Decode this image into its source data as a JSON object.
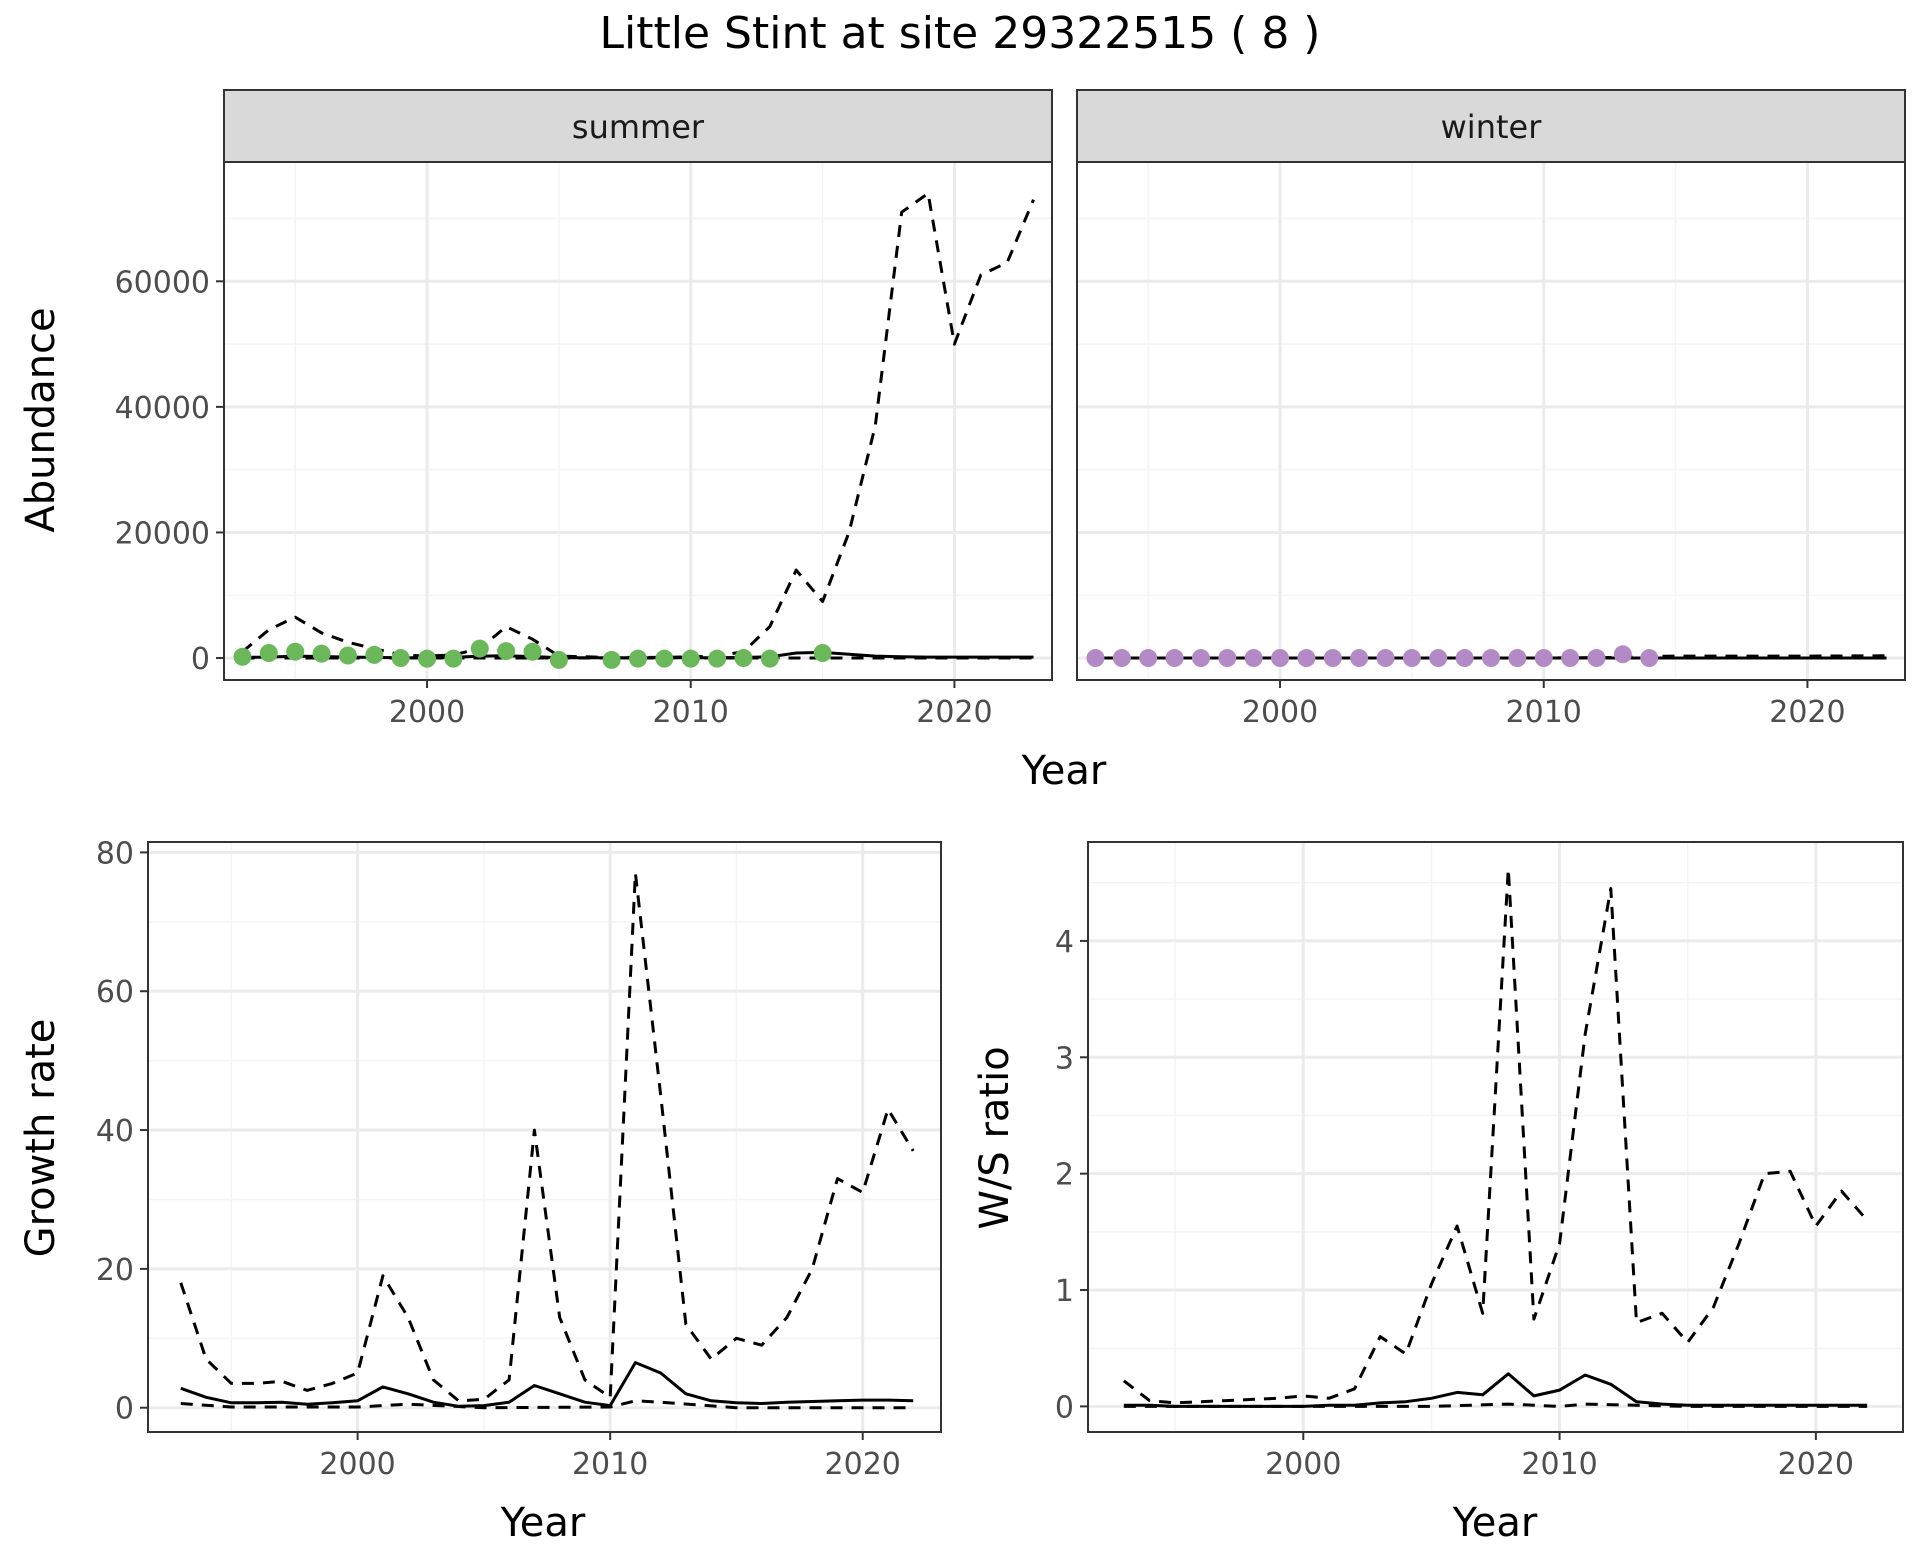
{
  "figure": {
    "title": "Little Stint at site 29322515 ( 8 )"
  },
  "colors": {
    "summer_points": "#6ab85a",
    "winter_points": "#b48ac6",
    "line": "#000000",
    "strip": "#d9d9d9",
    "grid_major": "#ebebeb",
    "grid_minor": "#f4f4f4"
  },
  "chart_data": [
    {
      "id": "summer",
      "type": "line",
      "strip": "summer",
      "ylabel": "Abundance",
      "xlabel": "",
      "xlim": [
        1992.3,
        2023.7
      ],
      "ylim": [
        -3500,
        79000
      ],
      "xticks": [
        2000,
        2010,
        2020
      ],
      "yticks": [
        0,
        20000,
        40000,
        60000
      ],
      "series": [
        {
          "style": "solid",
          "x": [
            1993,
            1994,
            1995,
            1996,
            1997,
            1998,
            1999,
            2000,
            2001,
            2002,
            2003,
            2004,
            2005,
            2006,
            2007,
            2008,
            2009,
            2010,
            2011,
            2012,
            2013,
            2014,
            2015,
            2016,
            2017,
            2018,
            2019,
            2020,
            2021,
            2022,
            2023
          ],
          "y": [
            100,
            150,
            300,
            250,
            150,
            100,
            50,
            50,
            100,
            300,
            350,
            250,
            50,
            50,
            50,
            50,
            50,
            50,
            50,
            100,
            200,
            800,
            900,
            600,
            300,
            200,
            150,
            150,
            150,
            150,
            150
          ]
        },
        {
          "style": "dashed",
          "x": [
            1993,
            1994,
            1995,
            1996,
            1997,
            1998,
            1999,
            2000,
            2001,
            2002,
            2003,
            2004,
            2005,
            2006,
            2007,
            2008,
            2009,
            2010,
            2011,
            2012,
            2013,
            2014,
            2015,
            2016,
            2017,
            2018,
            2019,
            2020,
            2021,
            2022,
            2023
          ],
          "y": [
            1000,
            4500,
            6500,
            4000,
            2500,
            1500,
            500,
            300,
            500,
            1500,
            5000,
            3000,
            300,
            200,
            100,
            100,
            100,
            200,
            300,
            1000,
            5000,
            14000,
            9000,
            20000,
            37000,
            71000,
            74000,
            50000,
            61000,
            63000,
            73000
          ]
        },
        {
          "style": "dashed",
          "x": [
            1993,
            1995,
            2000,
            2005,
            2010,
            2015,
            2020,
            2023
          ],
          "y": [
            0,
            0,
            0,
            0,
            0,
            0,
            0,
            0
          ]
        }
      ],
      "points": {
        "x": [
          1993,
          1994,
          1995,
          1996,
          1997,
          1998,
          1999,
          2000,
          2001,
          2002,
          2003,
          2004,
          2005,
          2007,
          2008,
          2009,
          2010,
          2011,
          2012,
          2013,
          2015
        ],
        "y": [
          200,
          800,
          1000,
          700,
          400,
          500,
          0,
          -100,
          -100,
          1500,
          1100,
          1000,
          -300,
          -300,
          -100,
          -100,
          -100,
          -100,
          0,
          -100,
          800
        ]
      }
    },
    {
      "id": "winter",
      "type": "line",
      "strip": "winter",
      "ylabel": "",
      "xlabel": "",
      "xlim": [
        1992.3,
        2023.7
      ],
      "ylim": [
        -3500,
        79000
      ],
      "xticks": [
        2000,
        2010,
        2020
      ],
      "yticks": [
        0,
        20000,
        40000,
        60000
      ],
      "series": [
        {
          "style": "solid",
          "x": [
            1993,
            2000,
            2005,
            2010,
            2014,
            2015,
            2020,
            2023
          ],
          "y": [
            0,
            0,
            0,
            0,
            0,
            0,
            0,
            0
          ]
        },
        {
          "style": "dashed",
          "x": [
            1993,
            2000,
            2005,
            2010,
            2013,
            2014,
            2015,
            2018,
            2020,
            2023
          ],
          "y": [
            0,
            0,
            0,
            0,
            100,
            250,
            300,
            300,
            300,
            350
          ]
        }
      ],
      "points": {
        "x": [
          1993,
          1994,
          1995,
          1996,
          1997,
          1998,
          1999,
          2000,
          2001,
          2002,
          2003,
          2004,
          2005,
          2006,
          2007,
          2008,
          2009,
          2010,
          2011,
          2012,
          2013,
          2014
        ],
        "y": [
          0,
          0,
          0,
          0,
          0,
          0,
          0,
          0,
          0,
          0,
          0,
          0,
          0,
          0,
          0,
          0,
          0,
          0,
          0,
          0,
          600,
          0
        ]
      }
    },
    {
      "id": "growth",
      "type": "line",
      "ylabel": "Growth rate",
      "xlabel": "Year",
      "xlim": [
        1991.7,
        2023.1
      ],
      "ylim": [
        -3.5,
        81.5
      ],
      "xticks": [
        2000,
        2010,
        2020
      ],
      "yticks": [
        0,
        20,
        40,
        60,
        80
      ],
      "series": [
        {
          "style": "dashed",
          "x": [
            1993,
            1994,
            1995,
            1996,
            1997,
            1998,
            1999,
            2000,
            2001,
            2002,
            2003,
            2004,
            2005,
            2006,
            2007,
            2008,
            2009,
            2010,
            2011,
            2012,
            2013,
            2014,
            2015,
            2016,
            2017,
            2018,
            2019,
            2020,
            2021,
            2022
          ],
          "y": [
            18,
            7,
            3.5,
            3.5,
            3.8,
            2.5,
            3.5,
            5,
            19,
            13,
            4,
            1,
            1.2,
            4,
            40,
            13,
            4,
            1.5,
            77,
            45,
            12,
            7,
            10,
            9,
            13,
            20,
            33,
            31,
            43,
            37
          ]
        },
        {
          "style": "solid",
          "x": [
            1993,
            1994,
            1995,
            1996,
            1997,
            1998,
            1999,
            2000,
            2001,
            2002,
            2003,
            2004,
            2005,
            2006,
            2007,
            2008,
            2009,
            2010,
            2011,
            2012,
            2013,
            2014,
            2015,
            2016,
            2017,
            2018,
            2019,
            2020,
            2021,
            2022
          ],
          "y": [
            2.8,
            1.5,
            0.7,
            0.7,
            0.8,
            0.5,
            0.7,
            1,
            3,
            2,
            0.8,
            0.2,
            0.3,
            0.8,
            3.2,
            2,
            0.8,
            0.3,
            6.5,
            5,
            2,
            1,
            0.7,
            0.6,
            0.8,
            0.9,
            1,
            1.1,
            1.1,
            1
          ]
        },
        {
          "style": "dashed",
          "x": [
            1993,
            1995,
            2000,
            2002,
            2005,
            2010,
            2011,
            2012,
            2015,
            2020,
            2022
          ],
          "y": [
            0.6,
            0.1,
            0.1,
            0.5,
            0,
            0.1,
            1,
            0.8,
            0,
            0,
            0
          ]
        }
      ]
    },
    {
      "id": "ws",
      "type": "line",
      "ylabel": "W/S ratio",
      "xlabel": "Year",
      "xlim": [
        1991.6,
        2023.4
      ],
      "ylim": [
        -0.22,
        4.85
      ],
      "xticks": [
        2000,
        2010,
        2020
      ],
      "yticks": [
        0,
        1,
        2,
        3,
        4
      ],
      "series": [
        {
          "style": "dashed",
          "x": [
            1993,
            1994,
            1995,
            1996,
            1997,
            1998,
            1999,
            2000,
            2001,
            2002,
            2003,
            2004,
            2005,
            2006,
            2007,
            2008,
            2009,
            2010,
            2011,
            2012,
            2013,
            2014,
            2015,
            2016,
            2017,
            2018,
            2019,
            2020,
            2021,
            2022
          ],
          "y": [
            0.22,
            0.05,
            0.03,
            0.04,
            0.05,
            0.06,
            0.07,
            0.09,
            0.07,
            0.15,
            0.6,
            0.45,
            1.05,
            1.55,
            0.8,
            4.62,
            0.75,
            1.4,
            3.2,
            4.45,
            0.72,
            0.8,
            0.55,
            0.85,
            1.4,
            2.0,
            2.02,
            1.55,
            1.85,
            1.6
          ]
        },
        {
          "style": "solid",
          "x": [
            1993,
            1994,
            1995,
            1996,
            1997,
            1998,
            1999,
            2000,
            2001,
            2002,
            2003,
            2004,
            2005,
            2006,
            2007,
            2008,
            2009,
            2010,
            2011,
            2012,
            2013,
            2014,
            2015,
            2016,
            2017,
            2018,
            2019,
            2020,
            2021,
            2022
          ],
          "y": [
            0.01,
            0.01,
            0,
            0,
            0,
            0,
            0,
            0,
            0.01,
            0.01,
            0.03,
            0.04,
            0.07,
            0.12,
            0.1,
            0.28,
            0.09,
            0.14,
            0.27,
            0.19,
            0.04,
            0.02,
            0.01,
            0.01,
            0.01,
            0.01,
            0.01,
            0.01,
            0.01,
            0.01
          ]
        },
        {
          "style": "dashed",
          "x": [
            1993,
            2000,
            2005,
            2008,
            2010,
            2011,
            2015,
            2020,
            2022
          ],
          "y": [
            0,
            0,
            0,
            0.02,
            0,
            0.02,
            0,
            0,
            0
          ]
        }
      ]
    }
  ]
}
